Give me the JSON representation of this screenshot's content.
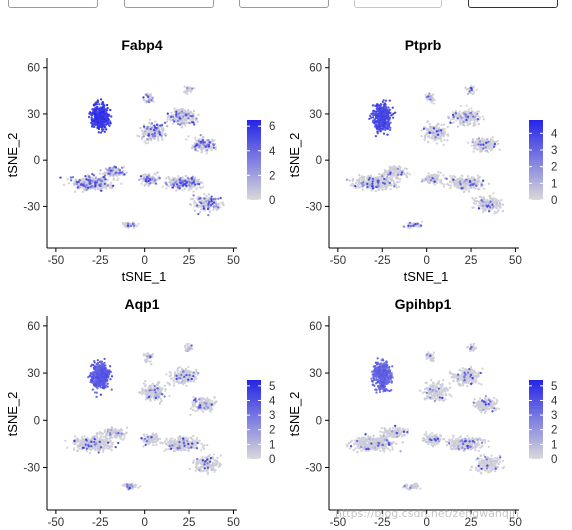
{
  "watermark": "https://blog.csdn.net/zengwanqin",
  "colors": {
    "low": "#d9d9d9",
    "high": "#2424e8",
    "axis": "#000000",
    "tick_text": "#333333"
  },
  "chart_data": [
    {
      "type": "scatter",
      "title": "Fabp4",
      "xlabel": "tSNE_1",
      "ylabel": "tSNE_2",
      "xlim": [
        -55,
        52
      ],
      "ylim": [
        -57,
        65
      ],
      "xticks": [
        -50,
        -25,
        0,
        25,
        50
      ],
      "yticks": [
        -30,
        0,
        30,
        60
      ],
      "legend": {
        "position": "right",
        "min": 0,
        "max": 6.5,
        "ticks": [
          0,
          2,
          4,
          6
        ]
      }
    },
    {
      "type": "scatter",
      "title": "Ptprb",
      "xlabel": "tSNE_1",
      "ylabel": "tSNE_2",
      "xlim": [
        -55,
        52
      ],
      "ylim": [
        -57,
        65
      ],
      "xticks": [
        -50,
        -25,
        0,
        25,
        50
      ],
      "yticks": [
        -30,
        0,
        30,
        60
      ],
      "legend": {
        "position": "right",
        "min": 0,
        "max": 4.8,
        "ticks": [
          0,
          1,
          2,
          3,
          4
        ]
      }
    },
    {
      "type": "scatter",
      "title": "Aqp1",
      "xlabel": "",
      "ylabel": "tSNE_2",
      "xlim": [
        -55,
        52
      ],
      "ylim": [
        -57,
        65
      ],
      "xticks": [
        -50,
        -25,
        0,
        25,
        50
      ],
      "yticks": [
        -30,
        0,
        30,
        60
      ],
      "legend": {
        "position": "right",
        "min": 0,
        "max": 5.4,
        "ticks": [
          0,
          1,
          2,
          3,
          4,
          5
        ]
      }
    },
    {
      "type": "scatter",
      "title": "Gpihbp1",
      "xlabel": "",
      "ylabel": "tSNE_2",
      "xlim": [
        -55,
        52
      ],
      "ylim": [
        -57,
        65
      ],
      "xticks": [
        -50,
        -25,
        0,
        25,
        50
      ],
      "yticks": [
        -30,
        0,
        30,
        60
      ],
      "legend": {
        "position": "right",
        "min": 0,
        "max": 5.4,
        "ticks": [
          0,
          1,
          2,
          3,
          4,
          5
        ]
      }
    }
  ]
}
